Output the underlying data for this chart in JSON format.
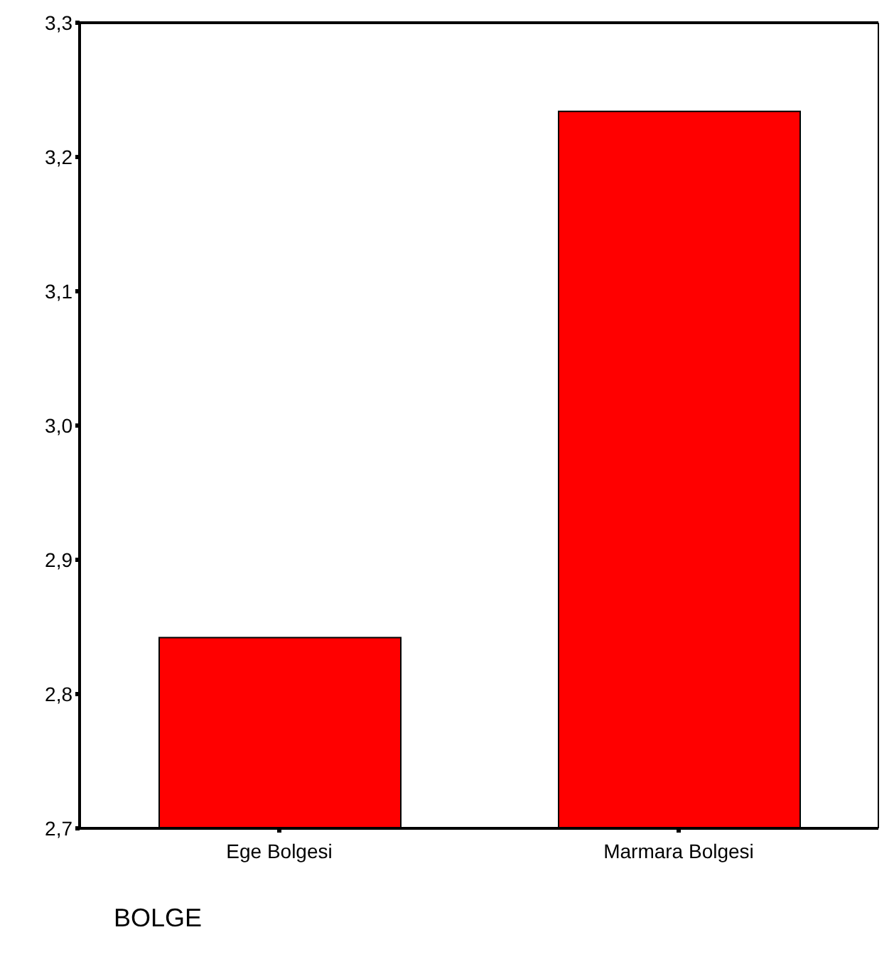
{
  "chart_data": {
    "type": "bar",
    "xlabel": "BOLGE",
    "categories": [
      "Ege Bolgesi",
      "Marmara Bolgesi"
    ],
    "values": [
      2.842,
      3.234
    ],
    "color": "#ff0000",
    "ylim": [
      2.7,
      3.3
    ],
    "yticks": [
      {
        "value": 2.7,
        "label": "2,7"
      },
      {
        "value": 2.8,
        "label": "2,8"
      },
      {
        "value": 2.9,
        "label": "2,9"
      },
      {
        "value": 3.0,
        "label": "3,0"
      },
      {
        "value": 3.1,
        "label": "3,1"
      },
      {
        "value": 3.2,
        "label": "3,2"
      },
      {
        "value": 3.3,
        "label": "3,3"
      }
    ],
    "grid": false
  }
}
